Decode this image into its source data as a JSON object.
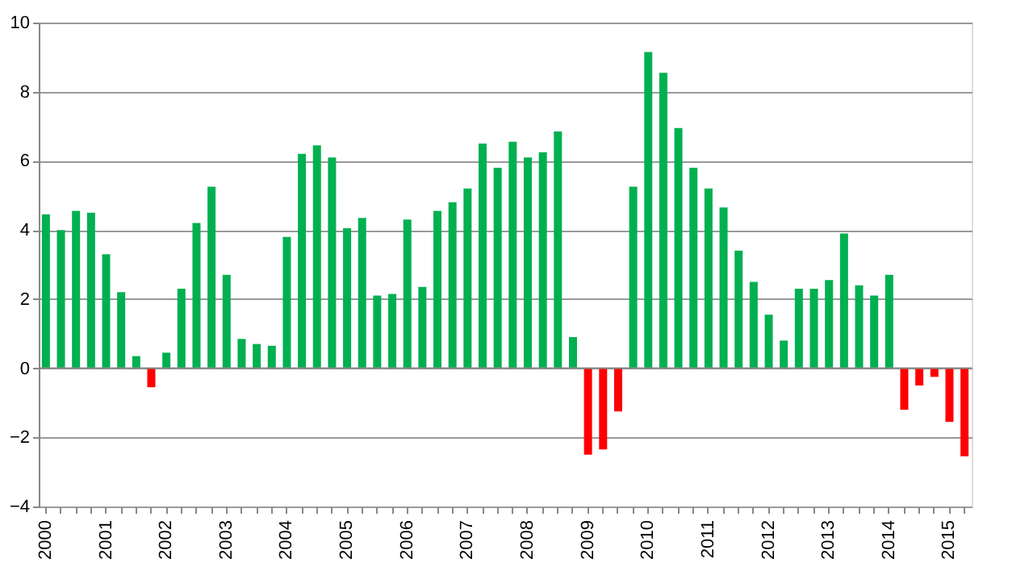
{
  "chart_data": {
    "type": "bar",
    "categories": [
      "2000",
      null,
      null,
      null,
      "2001",
      null,
      null,
      null,
      "2002",
      null,
      null,
      null,
      "2003",
      null,
      null,
      null,
      "2004",
      null,
      null,
      null,
      "2005",
      null,
      null,
      null,
      "2006",
      null,
      null,
      null,
      "2007",
      null,
      null,
      null,
      "2008",
      null,
      null,
      null,
      "2009",
      null,
      null,
      null,
      "2010",
      null,
      null,
      null,
      "2011",
      null,
      null,
      null,
      "2012",
      null,
      null,
      null,
      "2013",
      null,
      null,
      null,
      "2014",
      null,
      null,
      null,
      "2015",
      null
    ],
    "values": [
      4.45,
      4.0,
      4.55,
      4.5,
      3.3,
      2.2,
      0.35,
      -0.55,
      0.45,
      2.3,
      4.2,
      5.25,
      2.7,
      0.85,
      0.7,
      0.65,
      3.8,
      6.2,
      6.45,
      6.1,
      4.05,
      4.35,
      2.1,
      2.15,
      4.3,
      2.35,
      4.55,
      4.8,
      5.2,
      6.5,
      5.8,
      6.55,
      6.1,
      6.25,
      6.85,
      0.9,
      -2.5,
      -2.35,
      -1.25,
      5.25,
      9.15,
      8.55,
      6.95,
      5.8,
      5.2,
      4.65,
      3.4,
      2.5,
      1.55,
      0.8,
      2.3,
      2.3,
      2.55,
      3.9,
      2.4,
      2.1,
      2.7,
      -1.2,
      -0.5,
      -0.25,
      -1.55,
      -2.55
    ],
    "colors": [
      "#00b050",
      "#00b050",
      "#00b050",
      "#00b050",
      "#00b050",
      "#00b050",
      "#00b050",
      "#ff0000",
      "#00b050",
      "#00b050",
      "#00b050",
      "#00b050",
      "#00b050",
      "#00b050",
      "#00b050",
      "#00b050",
      "#00b050",
      "#00b050",
      "#00b050",
      "#00b050",
      "#00b050",
      "#00b050",
      "#00b050",
      "#00b050",
      "#00b050",
      "#00b050",
      "#00b050",
      "#00b050",
      "#00b050",
      "#00b050",
      "#00b050",
      "#00b050",
      "#00b050",
      "#00b050",
      "#00b050",
      "#00b050",
      "#ff0000",
      "#ff0000",
      "#ff0000",
      "#00b050",
      "#00b050",
      "#00b050",
      "#00b050",
      "#00b050",
      "#00b050",
      "#00b050",
      "#00b050",
      "#00b050",
      "#00b050",
      "#00b050",
      "#00b050",
      "#00b050",
      "#00b050",
      "#00b050",
      "#00b050",
      "#00b050",
      "#00b050",
      "#ff0000",
      "#ff0000",
      "#ff0000",
      "#ff0000",
      "#ff0000"
    ],
    "ylim": [
      -4,
      10
    ],
    "yticks": [
      -4,
      -2,
      0,
      2,
      4,
      6,
      8,
      10
    ],
    "grid": "y"
  }
}
